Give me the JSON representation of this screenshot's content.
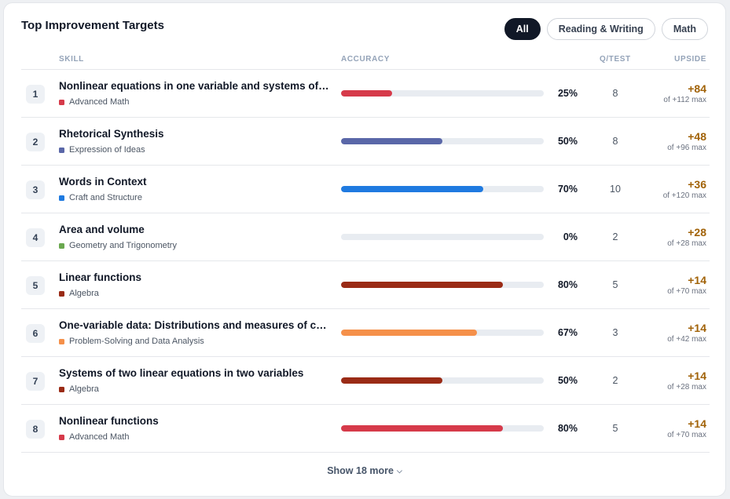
{
  "header": {
    "title": "Top Improvement Targets"
  },
  "filters": [
    {
      "label": "All",
      "active": true
    },
    {
      "label": "Reading & Writing",
      "active": false
    },
    {
      "label": "Math",
      "active": false
    }
  ],
  "columns": {
    "skill": "SKILL",
    "accuracy": "ACCURACY",
    "qtest": "Q/TEST",
    "upside": "UPSIDE"
  },
  "rows": [
    {
      "rank": "1",
      "name": "Nonlinear equations in one variable and systems of equations in two variables",
      "category": "Advanced Math",
      "color": "#d63a4a",
      "accuracy": 0.25,
      "pct": "25%",
      "qtest": "8",
      "upside": "+84",
      "max": "of +112 max"
    },
    {
      "rank": "2",
      "name": "Rhetorical Synthesis",
      "category": "Expression of Ideas",
      "color": "#5a67a8",
      "accuracy": 0.5,
      "pct": "50%",
      "qtest": "8",
      "upside": "+48",
      "max": "of +96 max"
    },
    {
      "rank": "3",
      "name": "Words in Context",
      "category": "Craft and Structure",
      "color": "#1f7ae0",
      "accuracy": 0.7,
      "pct": "70%",
      "qtest": "10",
      "upside": "+36",
      "max": "of +120 max"
    },
    {
      "rank": "4",
      "name": "Area and volume",
      "category": "Geometry and Trigonometry",
      "color": "#6aa84f",
      "accuracy": 0.0,
      "pct": "0%",
      "qtest": "2",
      "upside": "+28",
      "max": "of +28 max"
    },
    {
      "rank": "5",
      "name": "Linear functions",
      "category": "Algebra",
      "color": "#9a2b16",
      "accuracy": 0.8,
      "pct": "80%",
      "qtest": "5",
      "upside": "+14",
      "max": "of +70 max"
    },
    {
      "rank": "6",
      "name": "One-variable data: Distributions and measures of center and spread",
      "category": "Problem-Solving and Data Analysis",
      "color": "#f5904a",
      "accuracy": 0.67,
      "pct": "67%",
      "qtest": "3",
      "upside": "+14",
      "max": "of +42 max"
    },
    {
      "rank": "7",
      "name": "Systems of two linear equations in two variables",
      "category": "Algebra",
      "color": "#9a2b16",
      "accuracy": 0.5,
      "pct": "50%",
      "qtest": "2",
      "upside": "+14",
      "max": "of +28 max"
    },
    {
      "rank": "8",
      "name": "Nonlinear functions",
      "category": "Advanced Math",
      "color": "#d63a4a",
      "accuracy": 0.8,
      "pct": "80%",
      "qtest": "5",
      "upside": "+14",
      "max": "of +70 max"
    }
  ],
  "footer": {
    "show_more": "Show 18 more",
    "chevron_icon": "chevron-down-icon"
  }
}
